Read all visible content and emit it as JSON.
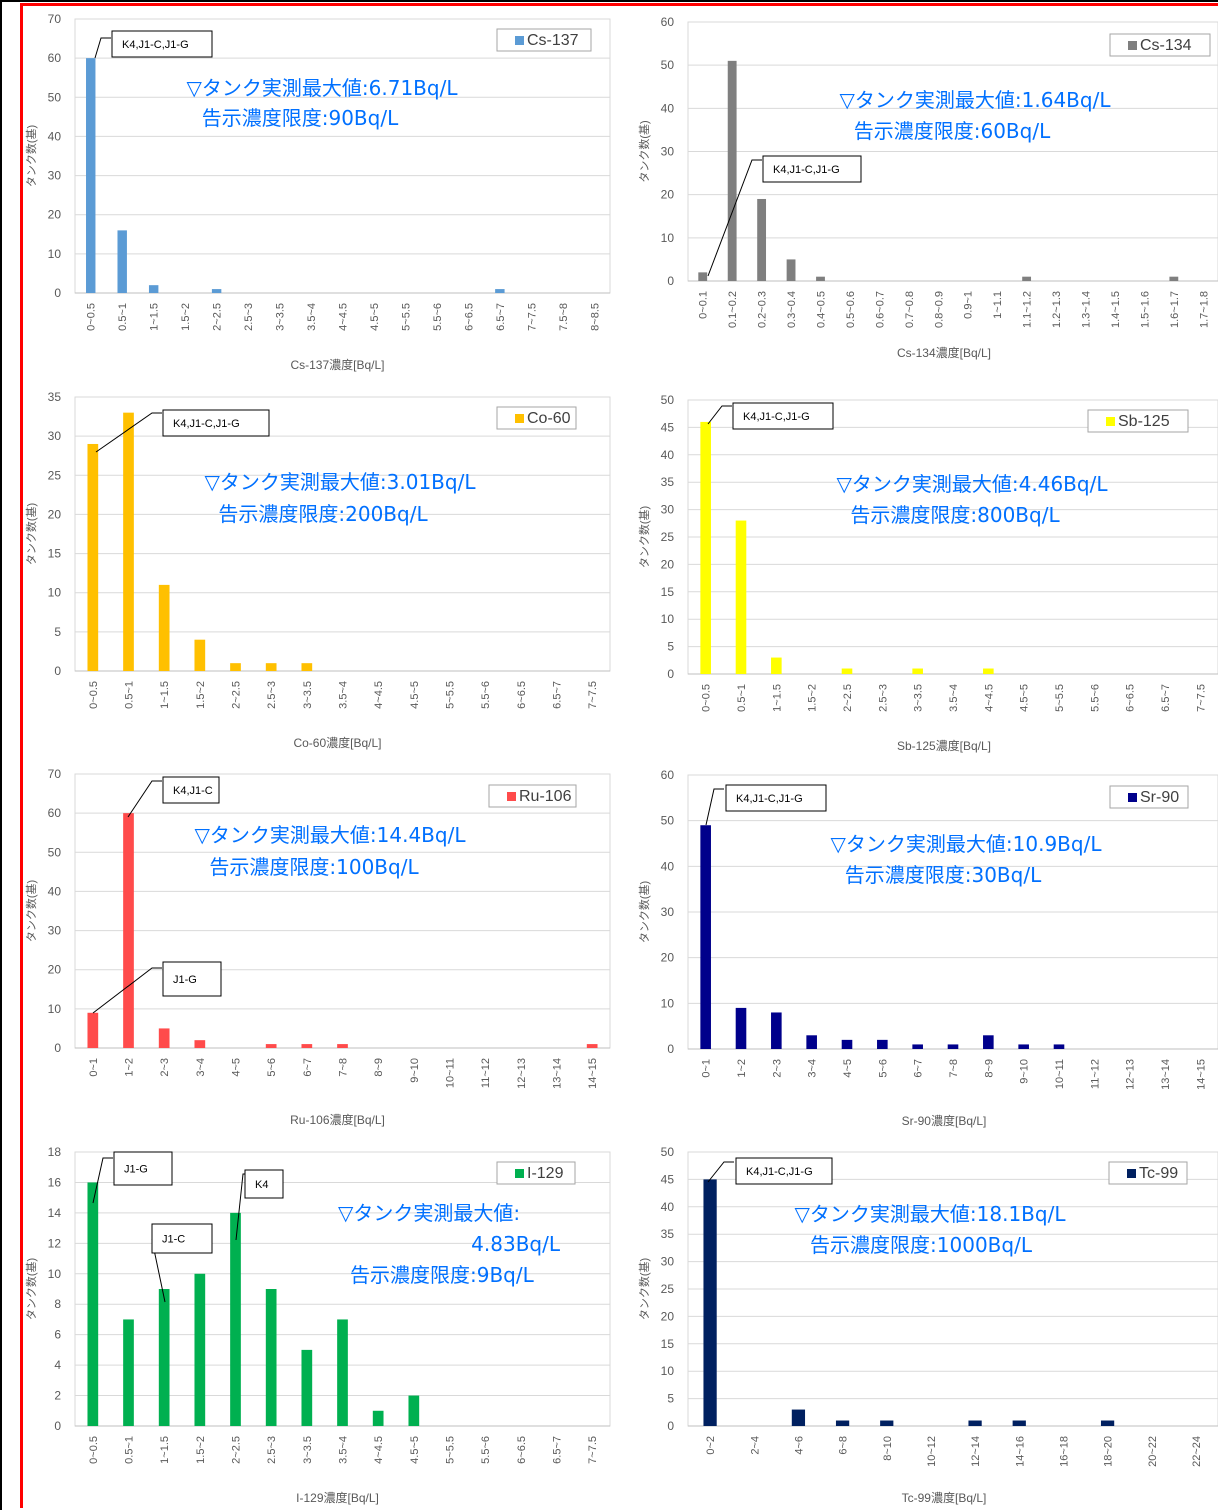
{
  "chart_data": [
    {
      "type": "bar",
      "legend": "Cs-137",
      "color": "#5B9BD5",
      "categories": [
        "0~0.5",
        "0.5~1",
        "1~1.5",
        "1.5~2",
        "2~2.5",
        "2.5~3",
        "3~3.5",
        "3.5~4",
        "4~4.5",
        "4.5~5",
        "5~5.5",
        "5.5~6",
        "6~6.5",
        "6.5~7",
        "7~7.5",
        "7.5~8",
        "8~8.5"
      ],
      "values": [
        60,
        16,
        2,
        0,
        1,
        0,
        0,
        0,
        0,
        0,
        0,
        0,
        0,
        1,
        0,
        0,
        0
      ],
      "ylim": [
        0,
        70
      ],
      "yticks": [
        0,
        10,
        20,
        30,
        40,
        50,
        60,
        70
      ],
      "xlabel": "Cs-137濃度[Bq/L]",
      "ylabel": "タンク数(基)",
      "callouts": [
        {
          "text": "K4,J1-C,J1-G",
          "category_index": 0
        }
      ],
      "annotation_lines": [
        "▽タンク実測最大値:6.71Bq/L",
        "告示濃度限度:90Bq/L"
      ]
    },
    {
      "type": "bar",
      "legend": "Cs-134",
      "color": "#7F7F7F",
      "categories": [
        "0~0.1",
        "0.1~0.2",
        "0.2~0.3",
        "0.3~0.4",
        "0.4~0.5",
        "0.5~0.6",
        "0.6~0.7",
        "0.7~0.8",
        "0.8~0.9",
        "0.9~1",
        "1~1.1",
        "1.1~1.2",
        "1.2~1.3",
        "1.3~1.4",
        "1.4~1.5",
        "1.5~1.6",
        "1.6~1.7",
        "1.7~1.8"
      ],
      "values": [
        2,
        51,
        19,
        5,
        1,
        0,
        0,
        0,
        0,
        0,
        0,
        1,
        0,
        0,
        0,
        0,
        1,
        0
      ],
      "ylim": [
        0,
        60
      ],
      "yticks": [
        0,
        10,
        20,
        30,
        40,
        50,
        60
      ],
      "xlabel": "Cs-134濃度[Bq/L]",
      "ylabel": "タンク数(基)",
      "callouts": [
        {
          "text": "K4,J1-C,J1-G",
          "category_index": 0
        }
      ],
      "annotation_lines": [
        "▽タンク実測最大値:1.64Bq/L",
        "告示濃度限度:60Bq/L"
      ]
    },
    {
      "type": "bar",
      "legend": "Co-60",
      "color": "#FFC000",
      "categories": [
        "0~0.5",
        "0.5~1",
        "1~1.5",
        "1.5~2",
        "2~2.5",
        "2.5~3",
        "3~3.5",
        "3.5~4",
        "4~4.5",
        "4.5~5",
        "5~5.5",
        "5.5~6",
        "6~6.5",
        "6.5~7",
        "7~7.5"
      ],
      "values": [
        29,
        33,
        11,
        4,
        1,
        1,
        1,
        0,
        0,
        0,
        0,
        0,
        0,
        0,
        0
      ],
      "ylim": [
        0,
        35
      ],
      "yticks": [
        0,
        5,
        10,
        15,
        20,
        25,
        30,
        35
      ],
      "xlabel": "Co-60濃度[Bq/L]",
      "ylabel": "タンク数(基)",
      "callouts": [
        {
          "text": "K4,J1-C,J1-G",
          "category_index": 0
        }
      ],
      "annotation_lines": [
        "▽タンク実測最大値:3.01Bq/L",
        "告示濃度限度:200Bq/L"
      ]
    },
    {
      "type": "bar",
      "legend": "Sb-125",
      "color": "#FFFF00",
      "categories": [
        "0~0.5",
        "0.5~1",
        "1~1.5",
        "1.5~2",
        "2~2.5",
        "2.5~3",
        "3~3.5",
        "3.5~4",
        "4~4.5",
        "4.5~5",
        "5~5.5",
        "5.5~6",
        "6~6.5",
        "6.5~7",
        "7~7.5"
      ],
      "values": [
        46,
        28,
        3,
        0,
        1,
        0,
        1,
        0,
        1,
        0,
        0,
        0,
        0,
        0,
        0
      ],
      "ylim": [
        0,
        50
      ],
      "yticks": [
        0,
        5,
        10,
        15,
        20,
        25,
        30,
        35,
        40,
        45,
        50
      ],
      "xlabel": "Sb-125濃度[Bq/L]",
      "ylabel": "タンク数(基)",
      "callouts": [
        {
          "text": "K4,J1-C,J1-G",
          "category_index": 0
        }
      ],
      "annotation_lines": [
        "▽タンク実測最大値:4.46Bq/L",
        "告示濃度限度:800Bq/L"
      ]
    },
    {
      "type": "bar",
      "legend": "Ru-106",
      "color": "#FF4B4B",
      "categories": [
        "0~1",
        "1~2",
        "2~3",
        "3~4",
        "4~5",
        "5~6",
        "6~7",
        "7~8",
        "8~9",
        "9~10",
        "10~11",
        "11~12",
        "12~13",
        "13~14",
        "14~15"
      ],
      "values": [
        9,
        60,
        5,
        2,
        0,
        1,
        1,
        1,
        0,
        0,
        0,
        0,
        0,
        0,
        1
      ],
      "ylim": [
        0,
        70
      ],
      "yticks": [
        0,
        10,
        20,
        30,
        40,
        50,
        60,
        70
      ],
      "xlabel": "Ru-106濃度[Bq/L]",
      "ylabel": "タンク数(基)",
      "callouts": [
        {
          "text": "K4,J1-C",
          "category_index": 1
        },
        {
          "text": "J1-G",
          "category_index": 0
        }
      ],
      "annotation_lines": [
        "▽タンク実測最大値:14.4Bq/L",
        "告示濃度限度:100Bq/L"
      ]
    },
    {
      "type": "bar",
      "legend": "Sr-90",
      "color": "#00008B",
      "categories": [
        "0~1",
        "1~2",
        "2~3",
        "3~4",
        "4~5",
        "5~6",
        "6~7",
        "7~8",
        "8~9",
        "9~10",
        "10~11",
        "11~12",
        "12~13",
        "13~14",
        "14~15"
      ],
      "values": [
        49,
        9,
        8,
        3,
        2,
        2,
        1,
        1,
        3,
        1,
        1,
        0,
        0,
        0,
        0
      ],
      "ylim": [
        0,
        60
      ],
      "yticks": [
        0,
        10,
        20,
        30,
        40,
        50,
        60
      ],
      "xlabel": "Sr-90濃度[Bq/L]",
      "ylabel": "タンク数(基)",
      "callouts": [
        {
          "text": "K4,J1-C,J1-G",
          "category_index": 0
        }
      ],
      "annotation_lines": [
        "▽タンク実測最大値:10.9Bq/L",
        "告示濃度限度:30Bq/L"
      ]
    },
    {
      "type": "bar",
      "legend": "I-129",
      "color": "#00B050",
      "categories": [
        "0~0.5",
        "0.5~1",
        "1~1.5",
        "1.5~2",
        "2~2.5",
        "2.5~3",
        "3~3.5",
        "3.5~4",
        "4~4.5",
        "4.5~5",
        "5~5.5",
        "5.5~6",
        "6~6.5",
        "6.5~7",
        "7~7.5"
      ],
      "values": [
        16,
        7,
        9,
        10,
        14,
        9,
        5,
        7,
        1,
        2,
        0,
        0,
        0,
        0,
        0
      ],
      "ylim": [
        0,
        18
      ],
      "yticks": [
        0,
        2,
        4,
        6,
        8,
        10,
        12,
        14,
        16,
        18
      ],
      "xlabel": "I-129濃度[Bq/L]",
      "ylabel": "タンク数(基)",
      "callouts": [
        {
          "text": "J1-G",
          "category_index": 0
        },
        {
          "text": "J1-C",
          "category_index": 2
        },
        {
          "text": "K4",
          "category_index": 4
        }
      ],
      "annotation_lines": [
        "▽タンク実測最大値:",
        "4.83Bq/L",
        "告示濃度限度:9Bq/L"
      ]
    },
    {
      "type": "bar",
      "legend": "Tc-99",
      "color": "#002060",
      "categories": [
        "0~2",
        "2~4",
        "4~6",
        "6~8",
        "8~10",
        "10~12",
        "12~14",
        "14~16",
        "16~18",
        "18~20",
        "20~22",
        "22~24"
      ],
      "values": [
        45,
        0,
        3,
        1,
        1,
        0,
        1,
        1,
        0,
        1,
        0,
        0
      ],
      "ylim": [
        0,
        50
      ],
      "yticks": [
        0,
        5,
        10,
        15,
        20,
        25,
        30,
        35,
        40,
        45,
        50
      ],
      "xlabel": "Tc-99濃度[Bq/L]",
      "ylabel": "タンク数(基)",
      "callouts": [
        {
          "text": "K4,J1-C,J1-G",
          "category_index": 0
        }
      ],
      "annotation_lines": [
        "▽タンク実測最大値:18.1Bq/L",
        "告示濃度限度:1000Bq/L"
      ]
    }
  ]
}
